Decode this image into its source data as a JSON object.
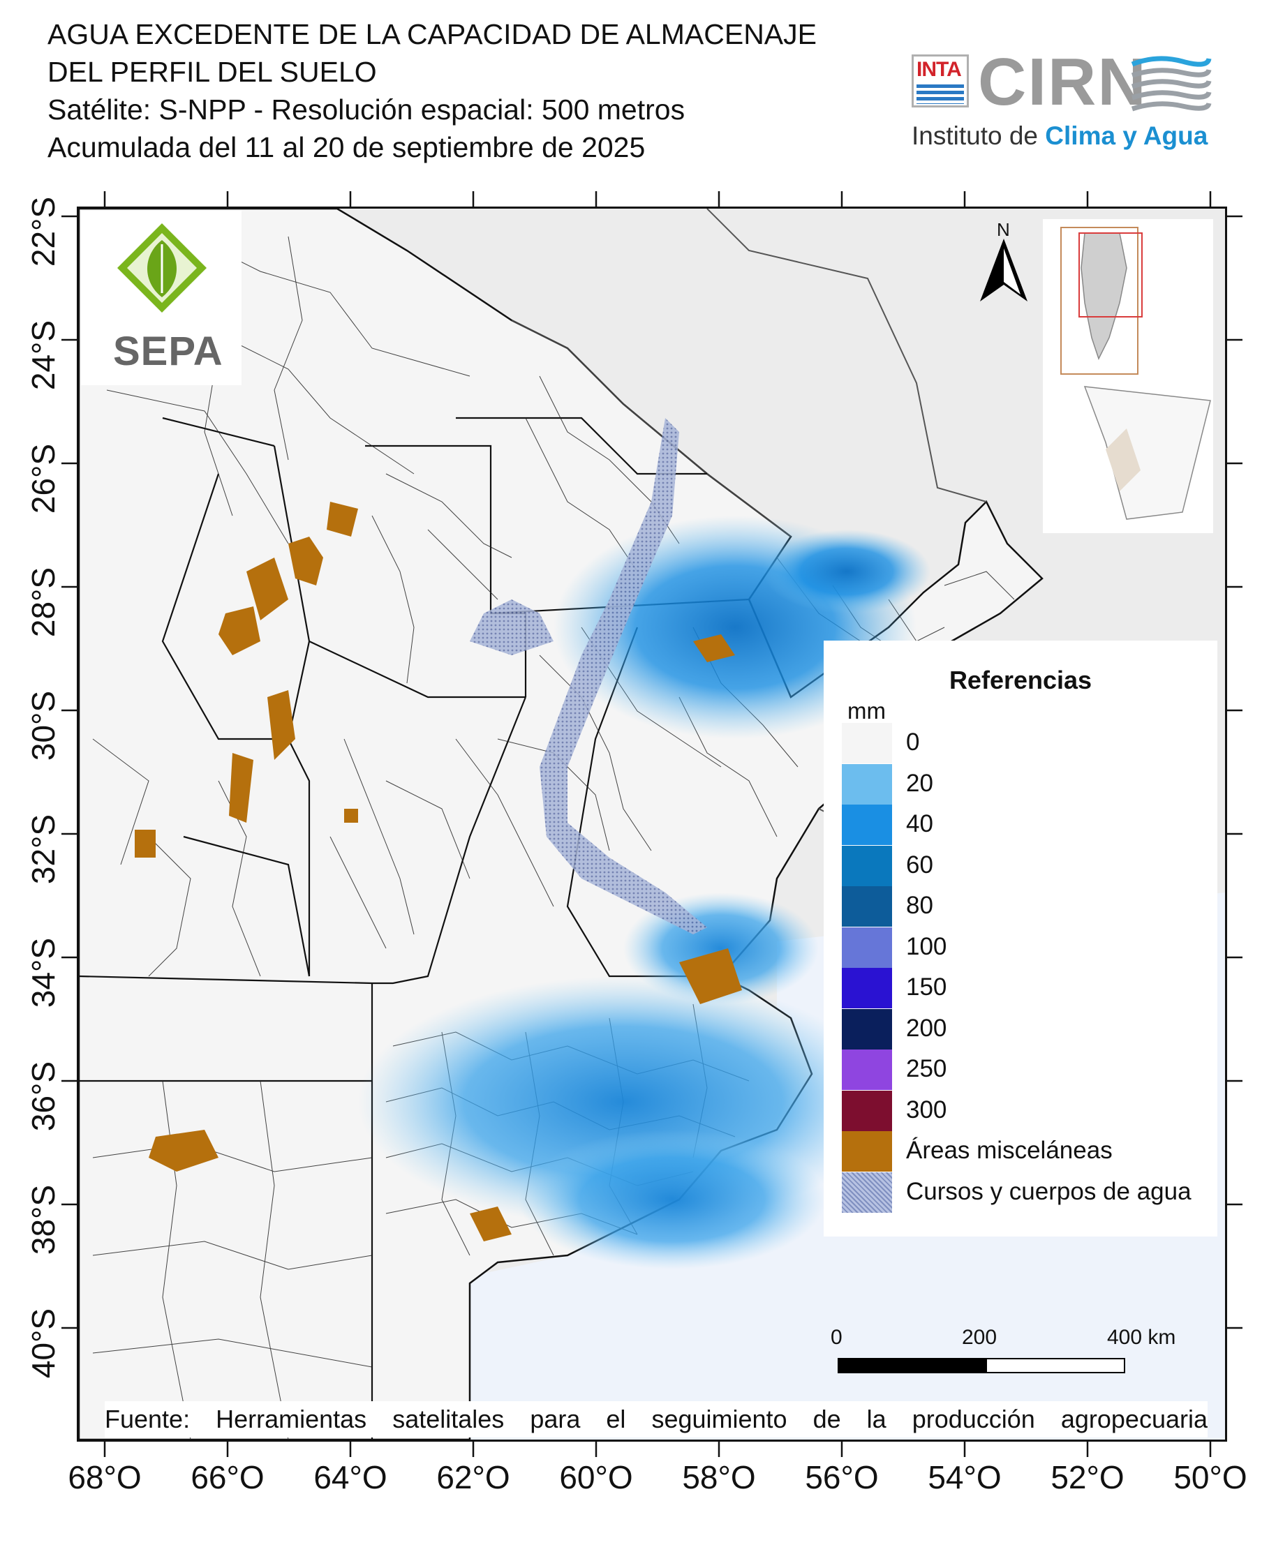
{
  "title": {
    "line1": "AGUA EXCEDENTE DE LA CAPACIDAD DE ALMACENAJE",
    "line2": "DEL PERFIL DEL SUELO",
    "line3": "Satélite: S-NPP - Resolución espacial: 500 metros",
    "line4": "Acumulada del 11 al 20 de septiembre de 2025"
  },
  "logos": {
    "inta": "INTA",
    "cirn": "CIRN",
    "institute_prefix": "Instituto de",
    "institute_highlight": "Clima y Agua",
    "sepa": "SEPA"
  },
  "north_arrow": {
    "label": "N"
  },
  "axes": {
    "lat_labels": [
      "22°S",
      "24°S",
      "26°S",
      "28°S",
      "30°S",
      "32°S",
      "34°S",
      "36°S",
      "38°S",
      "40°S"
    ],
    "lon_labels": [
      "68°O",
      "66°O",
      "64°O",
      "62°O",
      "60°O",
      "58°O",
      "56°O",
      "54°O",
      "52°O",
      "50°O"
    ]
  },
  "legend": {
    "title": "Referencias",
    "unit": "mm",
    "items": [
      {
        "label": "0",
        "color": "#f5f5f5"
      },
      {
        "label": "20",
        "color": "#6cbdee"
      },
      {
        "label": "40",
        "color": "#1a8fe3"
      },
      {
        "label": "60",
        "color": "#0a78bd"
      },
      {
        "label": "80",
        "color": "#0d5c9a"
      },
      {
        "label": "100",
        "color": "#6676d8"
      },
      {
        "label": "150",
        "color": "#2a12d2"
      },
      {
        "label": "200",
        "color": "#0a1f5c"
      },
      {
        "label": "250",
        "color": "#8f45e0"
      },
      {
        "label": "300",
        "color": "#7d0e2f"
      },
      {
        "label": "Áreas misceláneas",
        "color": "#b5700d"
      },
      {
        "label": "Cursos y cuerpos de agua",
        "color": "#8f9fc9"
      }
    ]
  },
  "scale_bar": {
    "labels": [
      "0",
      "200",
      "400 km"
    ]
  },
  "source": "Fuente: Herramientas satelitales para el seguimiento de la producción agropecuaria",
  "colors": {
    "land": "#f5f5f5",
    "outside": "#ececec",
    "sea": "#eef3fb",
    "boundary": "#222222"
  }
}
